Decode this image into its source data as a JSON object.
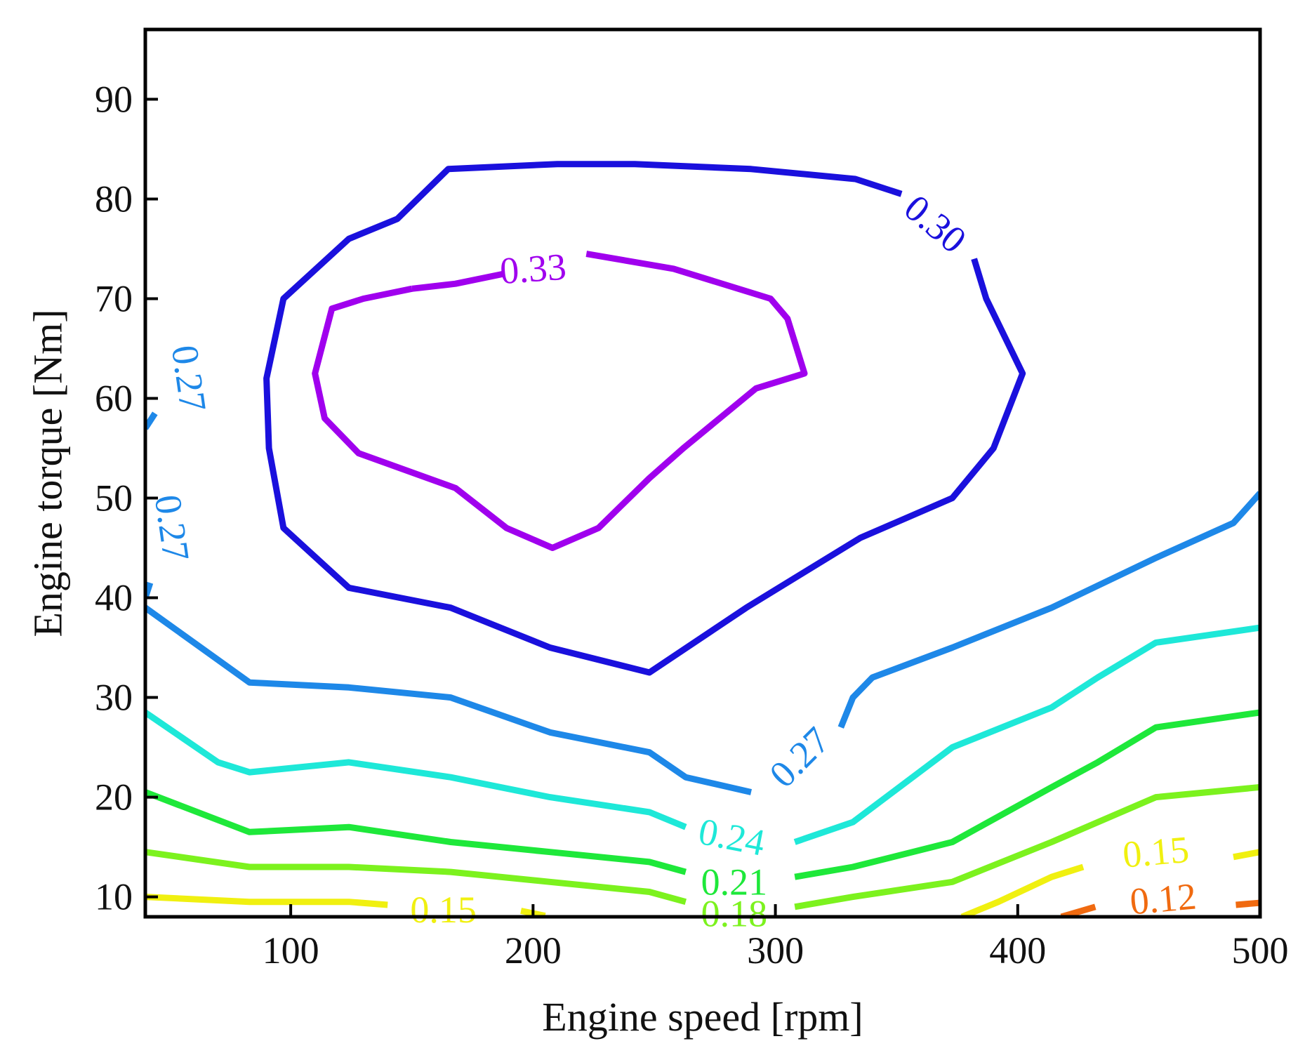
{
  "chart_data": {
    "type": "contour",
    "title": "",
    "xlabel": "Engine speed [rpm]",
    "ylabel": "Engine torque [Nm]",
    "xlim": [
      40,
      500
    ],
    "ylim": [
      8,
      97
    ],
    "xticks": [
      100,
      200,
      300,
      400,
      500
    ],
    "yticks": [
      10,
      20,
      30,
      40,
      50,
      60,
      70,
      80,
      90
    ],
    "levels": [
      {
        "name": "0.33",
        "color": "#a000ee",
        "segments": [
          [
            [
              150,
              71
            ],
            [
              130,
              70
            ],
            [
              117,
              69
            ],
            [
              110,
              62.5
            ],
            [
              114,
              58
            ],
            [
              128,
              54.5
            ],
            [
              168,
              51
            ],
            [
              189,
              47
            ],
            [
              208,
              45
            ],
            [
              227,
              47
            ],
            [
              248,
              52
            ],
            [
              262,
              55
            ],
            [
              292,
              61
            ],
            [
              312,
              62.5
            ],
            [
              305,
              68
            ],
            [
              298,
              70
            ],
            [
              258,
              73
            ],
            [
              222,
              74.5
            ]
          ],
          [
            [
              188,
              72.5
            ],
            [
              168,
              71.5
            ],
            [
              150,
              71
            ]
          ]
        ]
      },
      {
        "name": "0.30",
        "color": "#1a10dd",
        "segments": [
          [
            [
              352,
              80.5
            ],
            [
              333,
              82
            ],
            [
              290,
              83
            ],
            [
              242,
              83.5
            ],
            [
              210,
              83.5
            ],
            [
              165,
              83
            ],
            [
              144,
              78
            ],
            [
              124,
              76
            ],
            [
              97,
              70
            ],
            [
              90,
              62
            ],
            [
              91,
              55
            ],
            [
              97,
              47
            ],
            [
              124,
              41
            ],
            [
              166,
              39
            ],
            [
              207,
              35
            ],
            [
              248,
              32.5
            ],
            [
              288,
              39
            ],
            [
              335,
              46
            ],
            [
              373,
              50
            ],
            [
              390,
              55
            ],
            [
              402,
              62.5
            ],
            [
              387,
              70
            ],
            [
              382,
              74
            ]
          ]
        ]
      },
      {
        "name": "0.27",
        "color": "#1e88e8",
        "segments": [
          [
            [
              40,
              57
            ],
            [
              44,
              58.5
            ]
          ],
          [
            [
              40,
              40
            ],
            [
              42,
              41.5
            ]
          ],
          [
            [
              40,
              39
            ],
            [
              83,
              31.5
            ],
            [
              124,
              31
            ],
            [
              166,
              30
            ],
            [
              207,
              26.5
            ],
            [
              248,
              24.5
            ],
            [
              263,
              22
            ],
            [
              290,
              20.5
            ]
          ],
          [
            [
              327,
              27
            ],
            [
              332,
              30
            ],
            [
              340,
              32
            ],
            [
              373,
              35
            ],
            [
              414,
              39
            ],
            [
              457,
              44
            ],
            [
              489,
              47.5
            ],
            [
              500,
              50.5
            ]
          ]
        ]
      },
      {
        "name": "0.24",
        "color": "#1ee8d8",
        "segments": [
          [
            [
              40,
              28.5
            ],
            [
              70,
              23.5
            ],
            [
              83,
              22.5
            ],
            [
              124,
              23.5
            ],
            [
              166,
              22
            ],
            [
              207,
              20
            ],
            [
              248,
              18.5
            ],
            [
              263,
              17
            ]
          ],
          [
            [
              308,
              15.5
            ],
            [
              332,
              17.5
            ],
            [
              373,
              25
            ],
            [
              414,
              29
            ],
            [
              433,
              32
            ],
            [
              457,
              35.5
            ],
            [
              500,
              37
            ]
          ]
        ]
      },
      {
        "name": "0.21",
        "color": "#1ee83a",
        "segments": [
          [
            [
              40,
              20.5
            ],
            [
              83,
              16.5
            ],
            [
              124,
              17
            ],
            [
              166,
              15.5
            ],
            [
              207,
              14.5
            ],
            [
              248,
              13.5
            ],
            [
              263,
              12.5
            ]
          ],
          [
            [
              308,
              12
            ],
            [
              332,
              13
            ],
            [
              373,
              15.5
            ],
            [
              414,
              21
            ],
            [
              433,
              23.5
            ],
            [
              457,
              27
            ],
            [
              500,
              28.5
            ]
          ]
        ]
      },
      {
        "name": "0.18",
        "color": "#7cf21e",
        "segments": [
          [
            [
              40,
              14.5
            ],
            [
              83,
              13
            ],
            [
              124,
              13
            ],
            [
              166,
              12.5
            ],
            [
              207,
              11.5
            ],
            [
              248,
              10.5
            ],
            [
              263,
              9.5
            ]
          ],
          [
            [
              308,
              9
            ],
            [
              332,
              10
            ],
            [
              373,
              11.5
            ],
            [
              414,
              15.5
            ],
            [
              457,
              20
            ],
            [
              500,
              21
            ]
          ]
        ]
      },
      {
        "name": "0.15",
        "color": "#f0f010",
        "segments": [
          [
            [
              40,
              10
            ],
            [
              83,
              9.5
            ],
            [
              124,
              9.5
            ],
            [
              140,
              9.2
            ]
          ],
          [
            [
              195,
              8.6
            ],
            [
              205,
              8.1
            ]
          ],
          [
            [
              377,
              8
            ],
            [
              392,
              9.5
            ],
            [
              414,
              12
            ],
            [
              427,
              13
            ]
          ],
          [
            [
              489,
              14
            ],
            [
              500,
              14.5
            ]
          ]
        ]
      },
      {
        "name": "0.12",
        "color": "#f06a10",
        "segments": [
          [
            [
              418,
              8
            ],
            [
              432,
              9
            ]
          ],
          [
            [
              490,
              9.2
            ],
            [
              500,
              9.4
            ]
          ]
        ]
      }
    ],
    "labels": [
      {
        "text": "0.33",
        "x": 200,
        "y": 73,
        "angle": -4,
        "color": "#a000ee"
      },
      {
        "text": "0.30",
        "x": 366,
        "y": 77.5,
        "angle": 40,
        "color": "#1a10dd"
      },
      {
        "text": "0.27",
        "x": 58,
        "y": 62,
        "angle": 82,
        "color": "#1e88e8"
      },
      {
        "text": "0.27",
        "x": 51,
        "y": 47,
        "angle": 82,
        "color": "#1e88e8"
      },
      {
        "text": "0.27",
        "x": 310,
        "y": 24,
        "angle": -45,
        "color": "#1e88e8"
      },
      {
        "text": "0.24",
        "x": 282,
        "y": 16,
        "angle": 11,
        "color": "#1ee8d8"
      },
      {
        "text": "0.21",
        "x": 283,
        "y": 11.5,
        "angle": 0,
        "color": "#1ee83a"
      },
      {
        "text": "0.18",
        "x": 283,
        "y": 8.3,
        "angle": 0,
        "color": "#7cf21e"
      },
      {
        "text": "0.15",
        "x": 163,
        "y": 8.7,
        "angle": 0,
        "color": "#f0f010"
      },
      {
        "text": "0.15",
        "x": 457,
        "y": 14.5,
        "angle": -5,
        "color": "#f0f010"
      },
      {
        "text": "0.12",
        "x": 460,
        "y": 9.8,
        "angle": -5,
        "color": "#f06a10"
      }
    ]
  }
}
